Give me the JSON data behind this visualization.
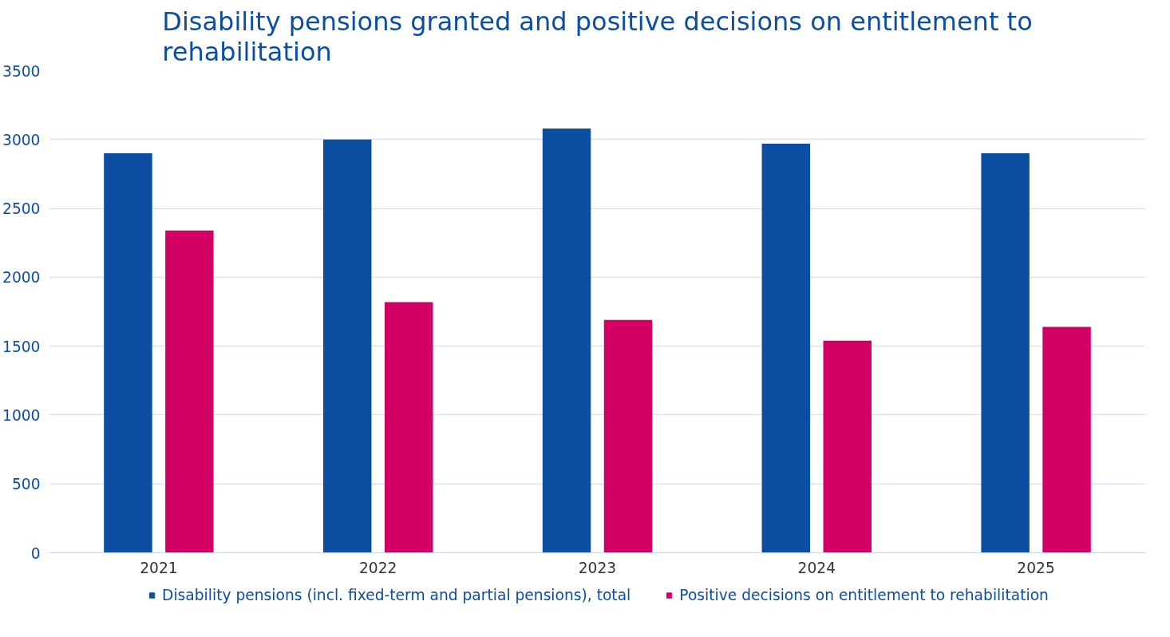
{
  "chart_data": {
    "type": "bar",
    "title": "Disability pensions granted and positive decisions on entitlement to rehabilitation",
    "categories": [
      "2021",
      "2022",
      "2023",
      "2024",
      "2025"
    ],
    "series": [
      {
        "name": "Disability pensions (incl. fixed-term and partial pensions), total",
        "color": "#0b4ea2",
        "values": [
          2900,
          3000,
          3080,
          2970,
          2900
        ]
      },
      {
        "name": "Positive decisions on entitlement to rehabilitation",
        "color": "#d20064",
        "values": [
          2340,
          1820,
          1690,
          1540,
          1640
        ]
      }
    ],
    "ylim": [
      0,
      3500
    ],
    "yticks": [
      0,
      500,
      1000,
      1500,
      2000,
      2500,
      3000,
      3500
    ],
    "grid": "y",
    "legend": "bottom"
  }
}
